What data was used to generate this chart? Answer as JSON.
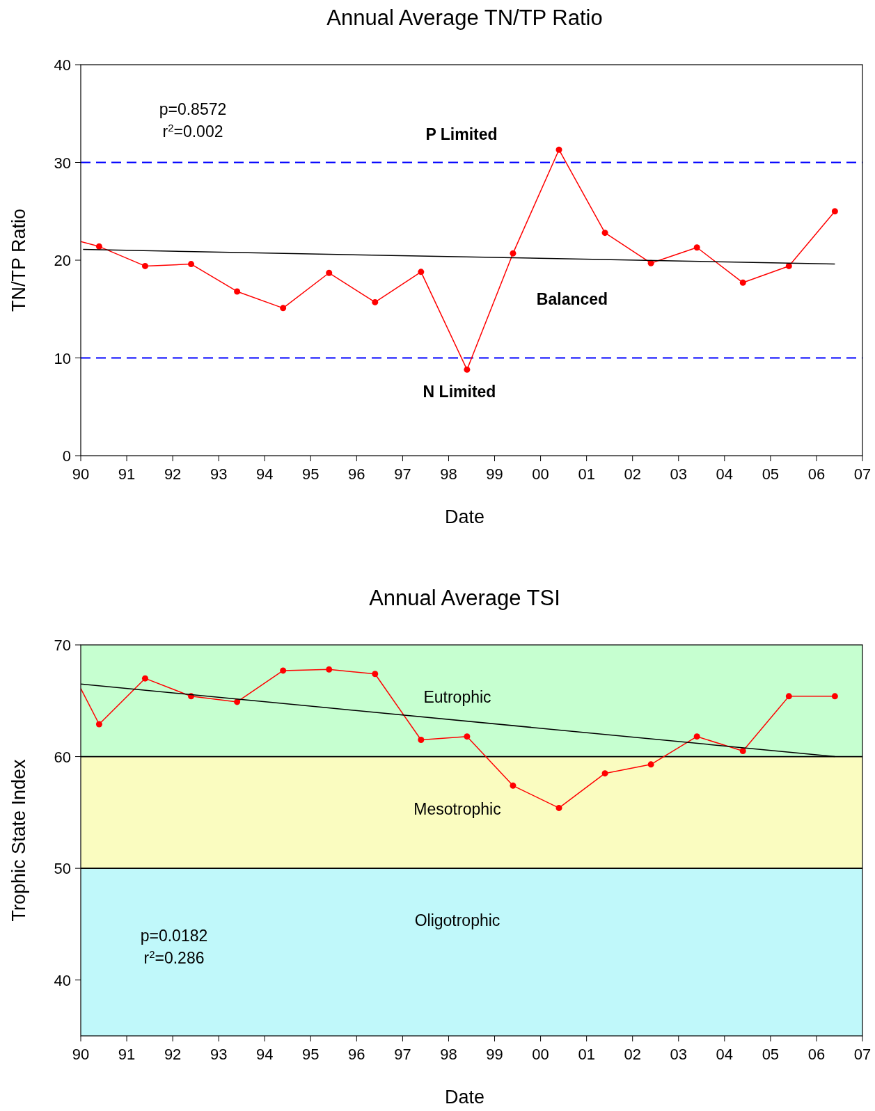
{
  "chart_data": [
    {
      "type": "line",
      "title": "Annual Average TN/TP Ratio",
      "xlabel": "Date",
      "ylabel": "TN/TP Ratio",
      "xlim": [
        1990,
        2007
      ],
      "ylim": [
        0,
        40
      ],
      "yticks": [
        0,
        10,
        20,
        30,
        40
      ],
      "xticks": [
        {
          "value": 1990,
          "label": "90"
        },
        {
          "value": 1991,
          "label": "91"
        },
        {
          "value": 1992,
          "label": "92"
        },
        {
          "value": 1993,
          "label": "93"
        },
        {
          "value": 1994,
          "label": "94"
        },
        {
          "value": 1995,
          "label": "95"
        },
        {
          "value": 1996,
          "label": "96"
        },
        {
          "value": 1997,
          "label": "97"
        },
        {
          "value": 1998,
          "label": "98"
        },
        {
          "value": 1999,
          "label": "99"
        },
        {
          "value": 2000,
          "label": "00"
        },
        {
          "value": 2001,
          "label": "01"
        },
        {
          "value": 2002,
          "label": "02"
        },
        {
          "value": 2003,
          "label": "03"
        },
        {
          "value": 2004,
          "label": "04"
        },
        {
          "value": 2005,
          "label": "05"
        },
        {
          "value": 2006,
          "label": "06"
        },
        {
          "value": 2007,
          "label": "07"
        }
      ],
      "series": [
        {
          "color": "#ff0000",
          "x": [
            1990,
            1990.4
          ],
          "values": [
            21.9,
            21.4
          ]
        },
        {
          "color": "#ff0000",
          "marker": "circle",
          "x": [
            1990.4,
            1991.4,
            1992.4,
            1993.4,
            1994.4,
            1995.4,
            1996.4,
            1997.4,
            1998.4,
            1999.4,
            2000.4,
            2001.4,
            2002.4,
            2003.4,
            2004.4,
            2005.4,
            2006.4
          ],
          "values": [
            21.4,
            19.4,
            19.6,
            16.8,
            15.1,
            18.7,
            15.7,
            18.8,
            8.8,
            20.7,
            31.3,
            22.8,
            19.7,
            21.3,
            17.7,
            19.4,
            25.0
          ]
        },
        {
          "color": "#000000",
          "marker": "none",
          "x": [
            1990.05,
            2006.4
          ],
          "values": [
            21.1,
            19.6
          ]
        }
      ],
      "ref_lines": [
        {
          "axis": "y",
          "value": 30,
          "color": "#0000ff",
          "line_style": "dashed"
        },
        {
          "axis": "y",
          "value": 10,
          "color": "#0000ff",
          "line_style": "dashed"
        }
      ],
      "annotations": [
        "p=0.8572",
        "r$^{2}$=0.002",
        "P Limited",
        "Balanced",
        "N Limited"
      ],
      "grid": false
    },
    {
      "type": "line",
      "title": "Annual Average TSI",
      "xlabel": "Date",
      "ylabel": "Trophic State Index",
      "xlim": [
        1990,
        2007
      ],
      "ylim": [
        35,
        70
      ],
      "yticks": [
        40,
        50,
        60,
        70
      ],
      "xticks": [
        {
          "value": 1990,
          "label": "90"
        },
        {
          "value": 1991,
          "label": "91"
        },
        {
          "value": 1992,
          "label": "92"
        },
        {
          "value": 1993,
          "label": "93"
        },
        {
          "value": 1994,
          "label": "94"
        },
        {
          "value": 1995,
          "label": "95"
        },
        {
          "value": 1996,
          "label": "96"
        },
        {
          "value": 1997,
          "label": "97"
        },
        {
          "value": 1998,
          "label": "98"
        },
        {
          "value": 1999,
          "label": "99"
        },
        {
          "value": 2000,
          "label": "00"
        },
        {
          "value": 2001,
          "label": "01"
        },
        {
          "value": 2002,
          "label": "02"
        },
        {
          "value": 2003,
          "label": "03"
        },
        {
          "value": 2004,
          "label": "04"
        },
        {
          "value": 2005,
          "label": "05"
        },
        {
          "value": 2006,
          "label": "06"
        },
        {
          "value": 2007,
          "label": "07"
        }
      ],
      "bands": [
        {
          "axis": "y",
          "from": 60,
          "to": 70,
          "label": "Eutrophic",
          "color": "#c6ffd0"
        },
        {
          "axis": "y",
          "from": 50,
          "to": 60,
          "label": "Mesotrophic",
          "color": "#fafcc0"
        },
        {
          "axis": "y",
          "from": 35,
          "to": 50,
          "label": "Oligotrophic",
          "color": "#c0f8fa"
        }
      ],
      "ref_lines": [
        {
          "axis": "y",
          "value": 60,
          "color": "#000000",
          "line_style": "solid"
        },
        {
          "axis": "y",
          "value": 50,
          "color": "#000000",
          "line_style": "solid"
        }
      ],
      "series": [
        {
          "color": "#ff0000",
          "x": [
            1990,
            1990.4
          ],
          "values": [
            66.1,
            62.9
          ]
        },
        {
          "color": "#ff0000",
          "marker": "circle",
          "x": [
            1990.4,
            1991.4,
            1992.4,
            1993.4,
            1994.4,
            1995.4,
            1996.4,
            1997.4,
            1998.4,
            1999.4,
            2000.4,
            2001.4,
            2002.4,
            2003.4,
            2004.4,
            2005.4,
            2006.4
          ],
          "values": [
            62.9,
            67.0,
            65.4,
            64.9,
            67.7,
            67.8,
            67.4,
            61.5,
            61.8,
            57.4,
            55.4,
            58.5,
            59.3,
            61.8,
            60.5,
            65.4,
            65.4
          ]
        },
        {
          "color": "#000000",
          "marker": "none",
          "x": [
            1990,
            2006.4
          ],
          "values": [
            66.5,
            60.0
          ]
        }
      ],
      "annotations": [
        "p=0.0182",
        "r$^{2}$=0.286"
      ],
      "grid": false
    }
  ]
}
